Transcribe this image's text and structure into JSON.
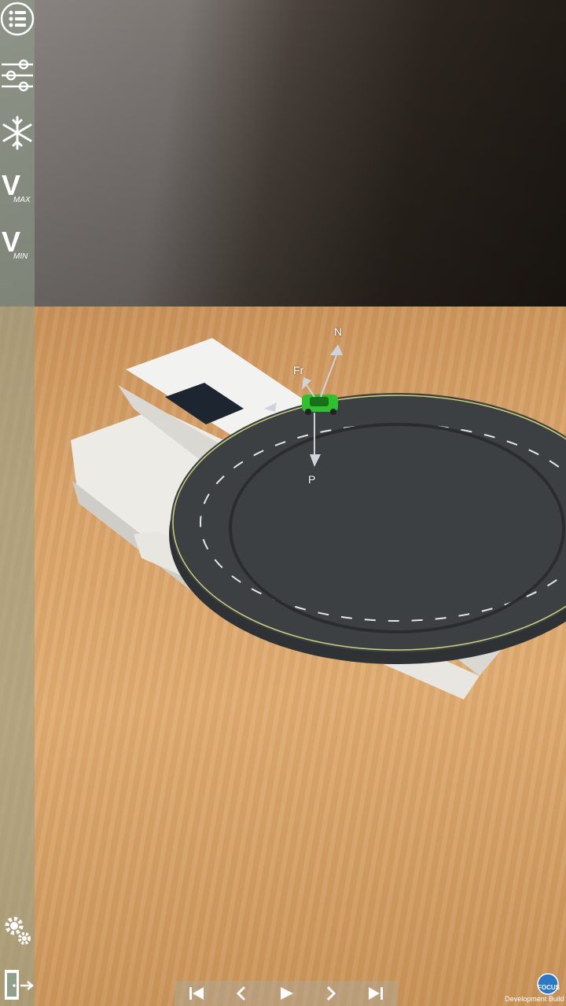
{
  "sidebar": {
    "menu_icon": "list-menu-icon",
    "sliders_icon": "sliders-icon",
    "snowflake_icon": "snowflake-icon",
    "vmax": {
      "letter": "V",
      "sub": "MAX"
    },
    "vmin": {
      "letter": "V",
      "sub": "MIN"
    },
    "settings_icon": "gears-icon",
    "exit_icon": "exit-door-icon"
  },
  "scene": {
    "forces": {
      "normal": "N",
      "friction": "Fr",
      "weight": "P"
    },
    "car_color": "#2fbf2f",
    "track_color": "#3d4043",
    "lane_color": "#e6e6e6"
  },
  "playback": {
    "first_icon": "skip-to-start-icon",
    "prev_icon": "step-back-icon",
    "play_icon": "play-icon",
    "next_icon": "step-forward-icon",
    "last_icon": "skip-to-end-icon"
  },
  "watermark": {
    "logo": "FOCUS",
    "text": "Development Build"
  }
}
